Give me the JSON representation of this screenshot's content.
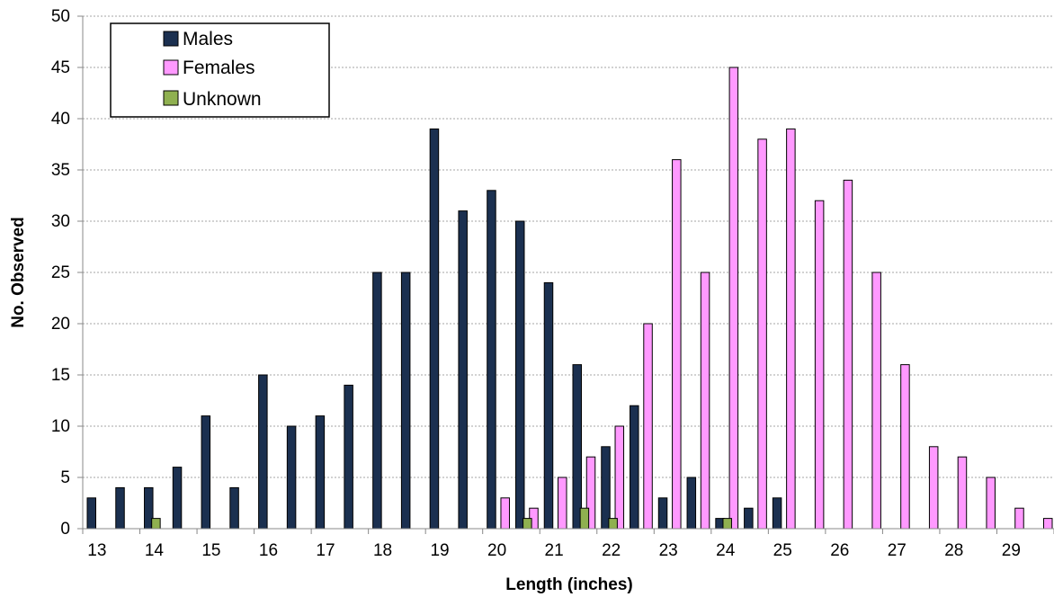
{
  "chart_data": {
    "type": "bar",
    "title": "",
    "xlabel": "Length (inches)",
    "ylabel": "No. Observed",
    "ylim": [
      0,
      50
    ],
    "y_ticks": [
      0,
      5,
      10,
      15,
      20,
      25,
      30,
      35,
      40,
      45,
      50
    ],
    "x_tick_labels": [
      "13",
      "14",
      "15",
      "16",
      "17",
      "18",
      "19",
      "20",
      "21",
      "22",
      "23",
      "24",
      "25",
      "26",
      "27",
      "28",
      "29"
    ],
    "grid": true,
    "legend_position": "top-left",
    "categories": [
      "13",
      "13.5",
      "14",
      "14.5",
      "15",
      "15.5",
      "16",
      "16.5",
      "17",
      "17.5",
      "18",
      "18.5",
      "19",
      "19.5",
      "20",
      "20.5",
      "21",
      "21.5",
      "22",
      "22.5",
      "23",
      "23.5",
      "24",
      "24.5",
      "25",
      "25.5",
      "26",
      "26.5",
      "27",
      "27.5",
      "28",
      "28.5",
      "29",
      "29.5"
    ],
    "series": [
      {
        "name": "Males",
        "color": "#1b3050",
        "values": [
          3,
          4,
          4,
          6,
          11,
          4,
          15,
          10,
          11,
          14,
          25,
          25,
          39,
          31,
          33,
          30,
          24,
          16,
          8,
          12,
          3,
          5,
          1,
          2,
          3,
          0,
          0,
          0,
          0,
          0,
          0,
          0,
          0,
          0
        ]
      },
      {
        "name": "Females",
        "color": "#ff99ff",
        "values": [
          0,
          0,
          0,
          0,
          0,
          0,
          0,
          0,
          0,
          0,
          0,
          0,
          0,
          0,
          3,
          2,
          5,
          7,
          10,
          20,
          36,
          25,
          45,
          38,
          39,
          32,
          34,
          25,
          16,
          8,
          7,
          5,
          2,
          1
        ]
      },
      {
        "name": "Unknown",
        "color": "#8fb050",
        "values": [
          0,
          0,
          1,
          0,
          0,
          0,
          0,
          0,
          0,
          0,
          0,
          0,
          0,
          0,
          0,
          1,
          0,
          2,
          1,
          0,
          0,
          0,
          1,
          0,
          0,
          0,
          0,
          0,
          0,
          0,
          0,
          0,
          0,
          0
        ]
      }
    ]
  }
}
